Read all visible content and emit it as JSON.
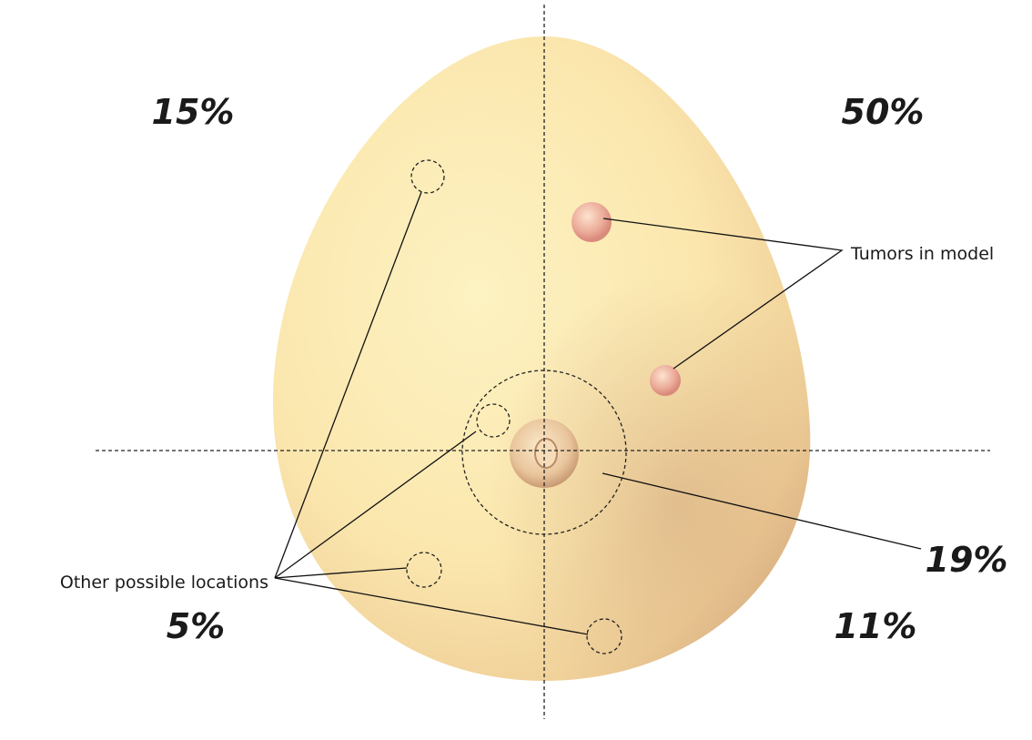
{
  "quadrants": {
    "upper_left": "15%",
    "upper_right": "50%",
    "lower_left": "5%",
    "lower_right": "11%"
  },
  "center": "19%",
  "annotations": {
    "tumors": "Tumors in model",
    "other": "Other possible locations"
  }
}
